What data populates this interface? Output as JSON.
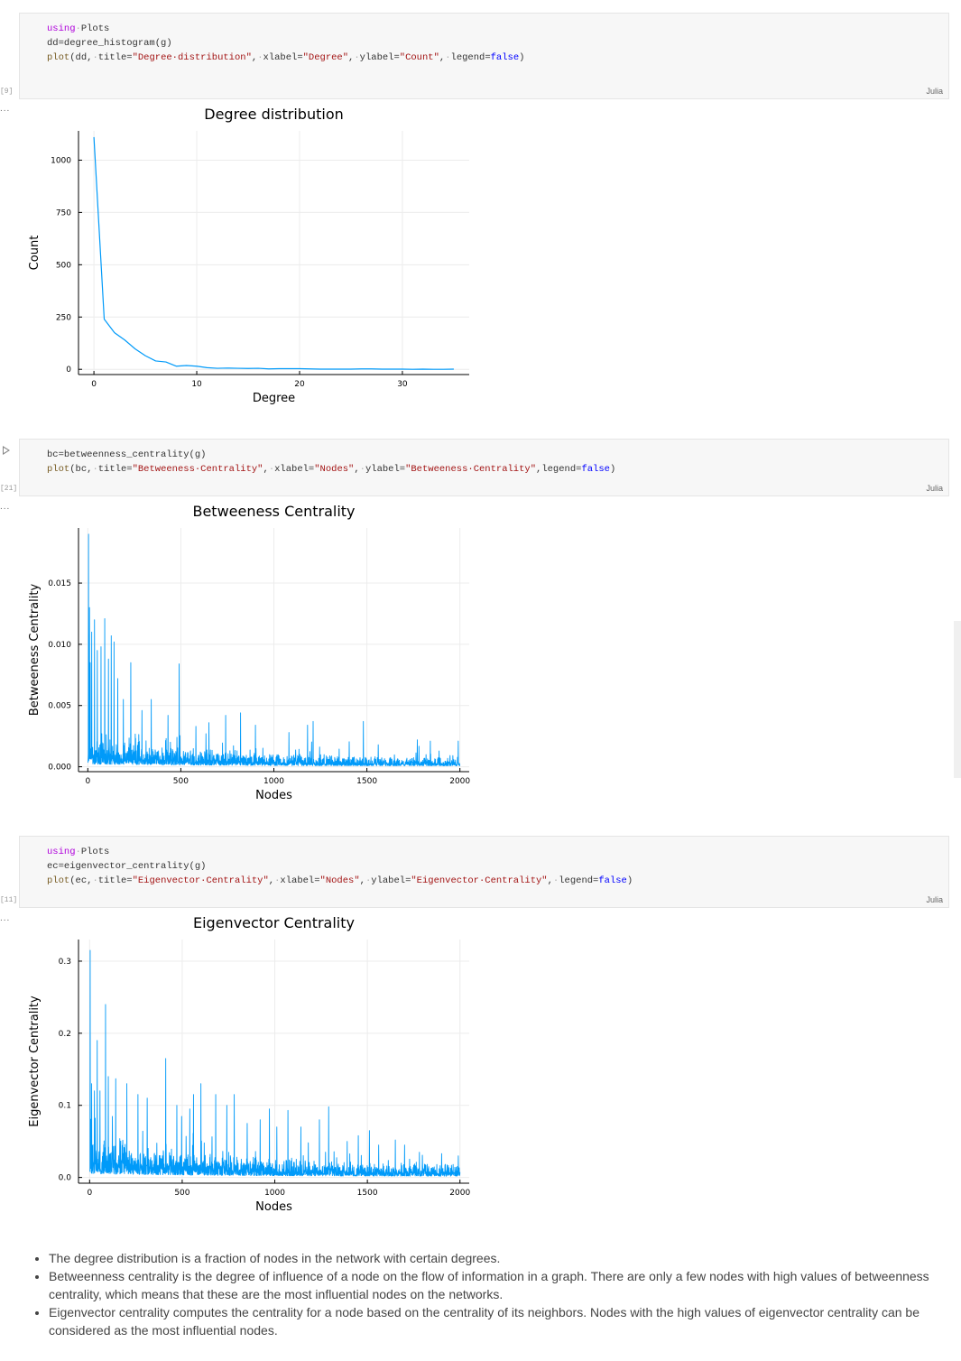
{
  "cells": [
    {
      "exec": "[9]",
      "lang": "Julia",
      "lines": [
        [
          [
            "kw",
            "using"
          ],
          [
            "ws",
            "·"
          ],
          [
            "t",
            "Plots"
          ]
        ],
        [
          [
            "t",
            "dd=degree_histogram(g)"
          ]
        ],
        [
          [
            "fn",
            "plot"
          ],
          [
            "t",
            "(dd,"
          ],
          [
            "ws",
            "·"
          ],
          [
            "t",
            "title="
          ],
          [
            "str",
            "\"Degree·distribution\""
          ],
          [
            "t",
            ","
          ],
          [
            "ws",
            "·"
          ],
          [
            "t",
            "xlabel="
          ],
          [
            "str",
            "\"Degree\""
          ],
          [
            "t",
            ","
          ],
          [
            "ws",
            "·"
          ],
          [
            "t",
            "ylabel="
          ],
          [
            "str",
            "\"Count\""
          ],
          [
            "t",
            ","
          ],
          [
            "ws",
            "·"
          ],
          [
            "t",
            "legend="
          ],
          [
            "bool",
            "false"
          ],
          [
            "t",
            ")"
          ]
        ]
      ]
    },
    {
      "exec": "[21]",
      "lang": "Julia",
      "lines": [
        [
          [
            "t",
            "bc=betweenness_centrality(g)"
          ]
        ],
        [
          [
            "fn",
            "plot"
          ],
          [
            "t",
            "(bc,"
          ],
          [
            "ws",
            "·"
          ],
          [
            "t",
            "title="
          ],
          [
            "str",
            "\"Betweeness·Centrality\""
          ],
          [
            "t",
            ","
          ],
          [
            "ws",
            "·"
          ],
          [
            "t",
            "xlabel="
          ],
          [
            "str",
            "\"Nodes\""
          ],
          [
            "t",
            ","
          ],
          [
            "ws",
            "·"
          ],
          [
            "t",
            "ylabel="
          ],
          [
            "str",
            "\"Betweeness·Centrality\""
          ],
          [
            "t",
            ",legend="
          ],
          [
            "bool",
            "false"
          ],
          [
            "t",
            ")"
          ]
        ]
      ]
    },
    {
      "exec": "[11]",
      "lang": "Julia",
      "lines": [
        [
          [
            "kw",
            "using"
          ],
          [
            "ws",
            "·"
          ],
          [
            "t",
            "Plots"
          ]
        ],
        [
          [
            "t",
            "ec=eigenvector_centrality(g)"
          ]
        ],
        [
          [
            "fn",
            "plot"
          ],
          [
            "t",
            "(ec,"
          ],
          [
            "ws",
            "·"
          ],
          [
            "t",
            "title="
          ],
          [
            "str",
            "\"Eigenvector·Centrality\""
          ],
          [
            "t",
            ","
          ],
          [
            "ws",
            "·"
          ],
          [
            "t",
            "xlabel="
          ],
          [
            "str",
            "\"Nodes\""
          ],
          [
            "t",
            ","
          ],
          [
            "ws",
            "·"
          ],
          [
            "t",
            "ylabel="
          ],
          [
            "str",
            "\"Eigenvector·Centrality\""
          ],
          [
            "t",
            ","
          ],
          [
            "ws",
            "·"
          ],
          [
            "t",
            "legend="
          ],
          [
            "bool",
            "false"
          ],
          [
            "t",
            ")"
          ]
        ]
      ]
    }
  ],
  "output_ellipsis": "...",
  "colors": {
    "series": "#009af9",
    "grid": "#ececec",
    "axis": "#000000"
  },
  "chart_data": [
    {
      "type": "line",
      "title": "Degree distribution",
      "xlabel": "Degree",
      "ylabel": "Count",
      "xlim": [
        -1.5,
        36.5
      ],
      "ylim": [
        -25,
        1140
      ],
      "xticks": [
        0,
        10,
        20,
        30
      ],
      "yticks": [
        0,
        250,
        500,
        750,
        1000
      ],
      "ytick_labels": [
        "0",
        "250",
        "500",
        "750",
        "1000"
      ],
      "grid": true,
      "legend": "none",
      "series": [
        {
          "x": [
            0,
            1,
            2,
            3,
            4,
            5,
            6,
            7,
            8,
            9,
            10,
            11,
            12,
            13,
            14,
            15,
            16,
            17,
            18,
            19,
            20,
            21,
            22,
            23,
            24,
            25,
            26,
            27,
            28,
            29,
            30,
            31,
            32,
            33,
            34,
            35
          ],
          "values": [
            1110,
            240,
            175,
            140,
            98,
            65,
            40,
            35,
            15,
            18,
            15,
            8,
            5,
            6,
            5,
            4,
            5,
            2,
            3,
            3,
            3,
            2,
            1,
            1,
            1,
            1,
            2,
            2,
            1,
            1,
            1,
            0,
            1,
            0,
            0,
            1
          ]
        }
      ]
    },
    {
      "type": "line",
      "title": "Betweeness Centrality",
      "xlabel": "Nodes",
      "ylabel": "Betweeness Centrality",
      "xlim": [
        -50,
        2050
      ],
      "ylim": [
        -0.0004,
        0.0195
      ],
      "xticks": [
        0,
        500,
        1000,
        1500,
        2000
      ],
      "yticks": [
        0,
        0.005,
        0.01,
        0.015
      ],
      "ytick_labels": [
        "0.000",
        "0.005",
        "0.010",
        "0.015"
      ],
      "grid": true,
      "legend": "none",
      "series": [
        {
          "n": 2000,
          "seed": 21,
          "max": 0.019,
          "base": 0.0012,
          "peaks": [
            [
              3,
              0.019
            ],
            [
              8,
              0.013
            ],
            [
              12,
              0.0085
            ],
            [
              20,
              0.011
            ],
            [
              35,
              0.012
            ],
            [
              50,
              0.0095
            ],
            [
              70,
              0.0098
            ],
            [
              90,
              0.0121
            ],
            [
              110,
              0.0088
            ],
            [
              125,
              0.0107
            ],
            [
              140,
              0.0102
            ],
            [
              160,
              0.0072
            ],
            [
              190,
              0.0055
            ],
            [
              230,
              0.0085
            ],
            [
              290,
              0.0046
            ],
            [
              340,
              0.0055
            ],
            [
              430,
              0.0042
            ],
            [
              490,
              0.0084
            ],
            [
              580,
              0.0033
            ],
            [
              650,
              0.0036
            ],
            [
              740,
              0.0042
            ],
            [
              820,
              0.0044
            ],
            [
              900,
              0.0034
            ],
            [
              1080,
              0.0028
            ],
            [
              1180,
              0.0034
            ],
            [
              1210,
              0.0037
            ],
            [
              1480,
              0.0037
            ],
            [
              1560,
              0.0018
            ],
            [
              1770,
              0.0022
            ],
            [
              1840,
              0.0021
            ],
            [
              1990,
              0.0021
            ]
          ]
        }
      ]
    },
    {
      "type": "line",
      "title": "Eigenvector Centrality",
      "xlabel": "Nodes",
      "ylabel": "Eigenvector Centrality",
      "xlim": [
        -60,
        2050
      ],
      "ylim": [
        -0.008,
        0.33
      ],
      "xticks": [
        0,
        500,
        1000,
        1500,
        2000
      ],
      "yticks": [
        0,
        0.1,
        0.2,
        0.3
      ],
      "ytick_labels": [
        "0.0",
        "0.1",
        "0.2",
        "0.3"
      ],
      "grid": true,
      "legend": "none",
      "series": [
        {
          "n": 2000,
          "seed": 11,
          "max": 0.315,
          "base": 0.028,
          "peaks": [
            [
              2,
              0.315
            ],
            [
              10,
              0.13
            ],
            [
              25,
              0.12
            ],
            [
              40,
              0.19
            ],
            [
              55,
              0.12
            ],
            [
              85,
              0.24
            ],
            [
              100,
              0.14
            ],
            [
              140,
              0.137
            ],
            [
              200,
              0.13
            ],
            [
              260,
              0.115
            ],
            [
              310,
              0.11
            ],
            [
              410,
              0.165
            ],
            [
              470,
              0.1
            ],
            [
              540,
              0.095
            ],
            [
              560,
              0.115
            ],
            [
              600,
              0.13
            ],
            [
              680,
              0.115
            ],
            [
              740,
              0.1
            ],
            [
              780,
              0.115
            ],
            [
              850,
              0.075
            ],
            [
              920,
              0.08
            ],
            [
              970,
              0.095
            ],
            [
              1010,
              0.07
            ],
            [
              1070,
              0.093
            ],
            [
              1140,
              0.07
            ],
            [
              1240,
              0.08
            ],
            [
              1290,
              0.098
            ],
            [
              1390,
              0.05
            ],
            [
              1450,
              0.058
            ],
            [
              1510,
              0.065
            ],
            [
              1560,
              0.045
            ],
            [
              1650,
              0.052
            ],
            [
              1700,
              0.045
            ],
            [
              1780,
              0.035
            ],
            [
              1900,
              0.033
            ],
            [
              1990,
              0.03
            ]
          ]
        }
      ]
    }
  ],
  "notes": [
    "The degree distribution is a fraction of nodes in the network with certain degrees.",
    "Betweenness centrality is the degree of influence of a node on the flow of information in a graph. There are only a few nodes with high values of betweenness centrality, which means that these are the most influential nodes on the networks.",
    "Eigenvector centrality computes the centrality for a node based on the centrality of its neighbors. Nodes with the high values of eigenvector centrality can be considered as the most influential nodes."
  ]
}
